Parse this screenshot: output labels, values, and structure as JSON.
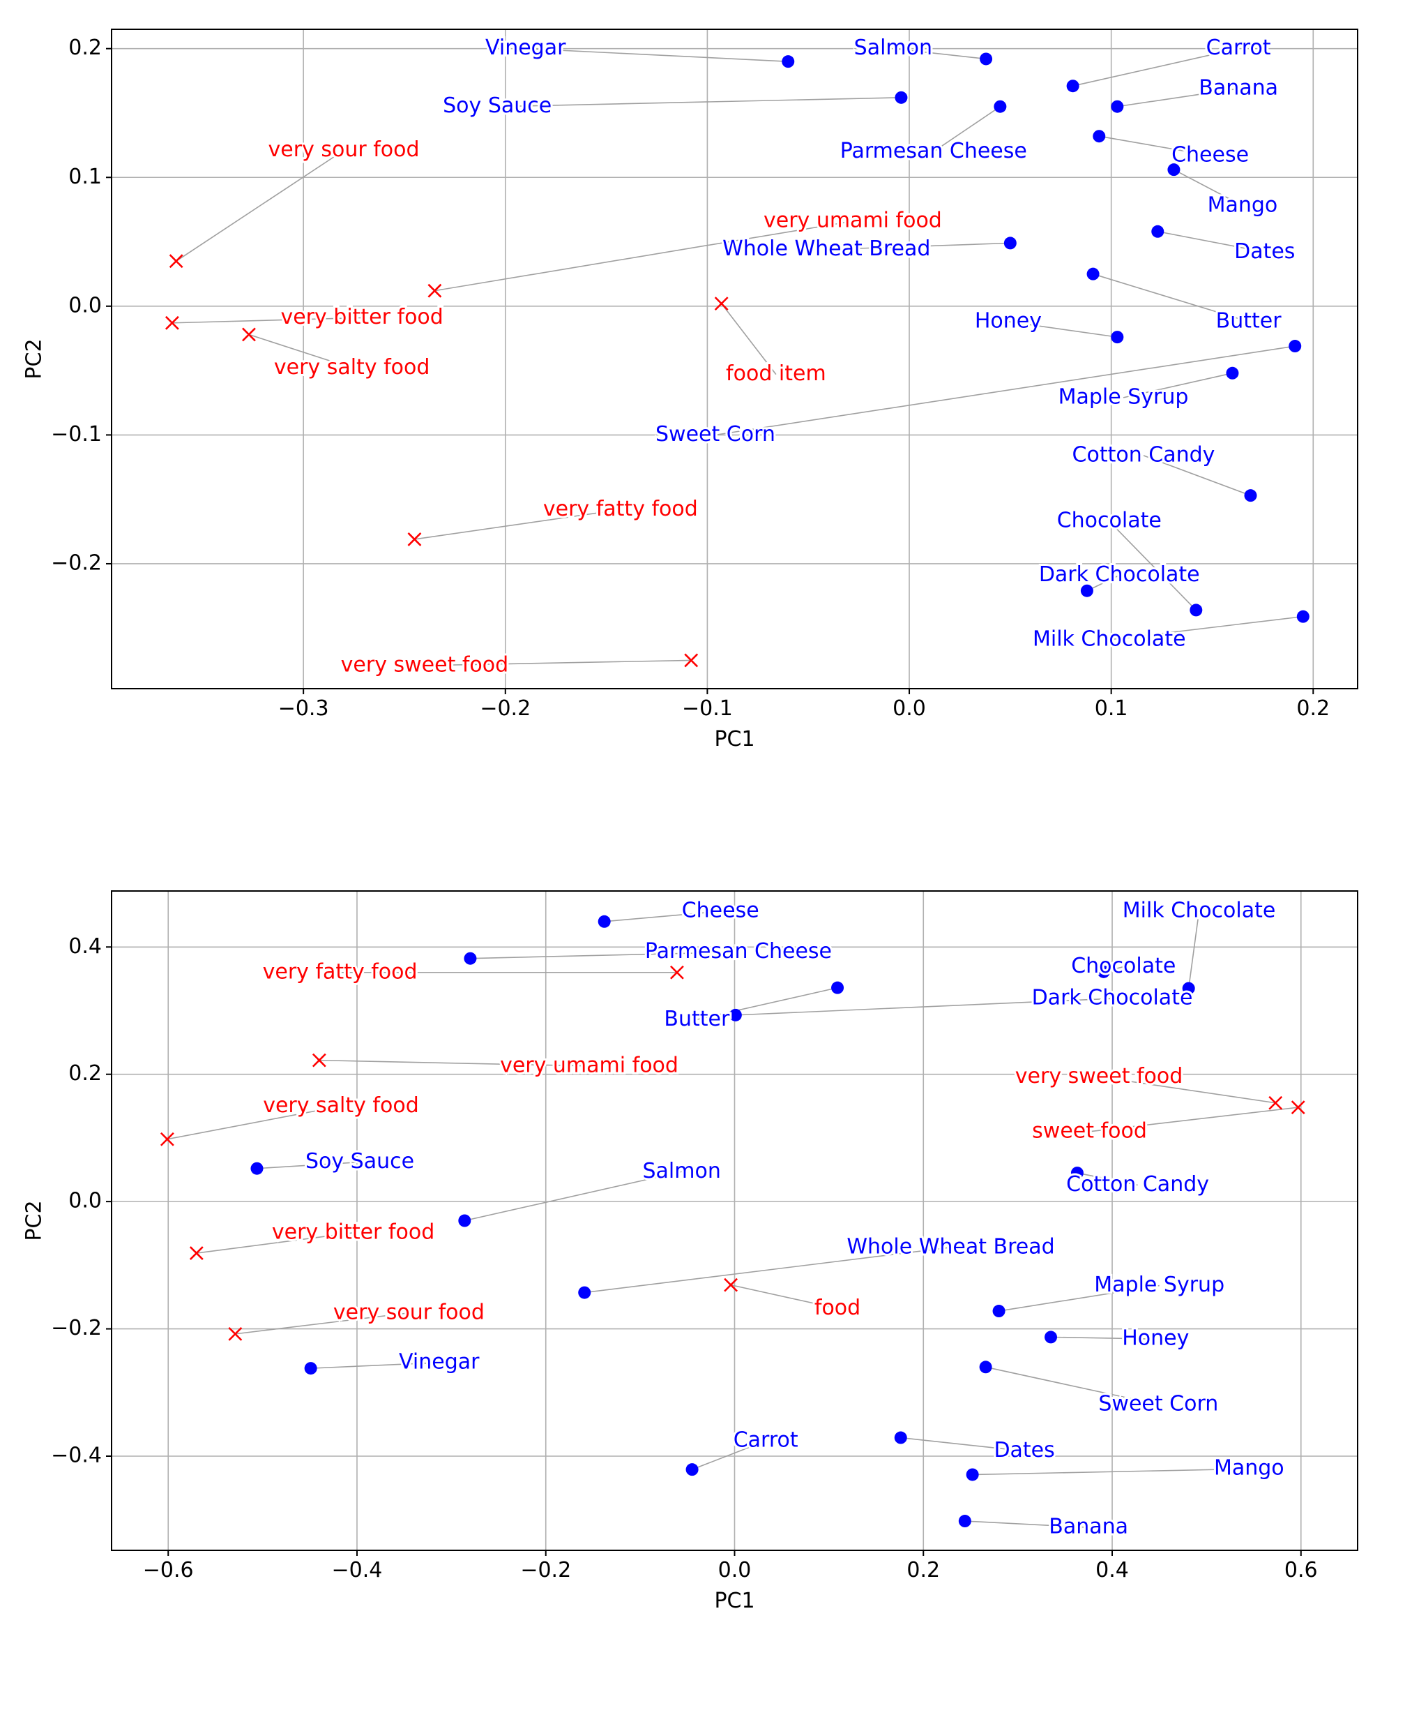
{
  "colors": {
    "word": "#0000ff",
    "concept": "#ff0000",
    "grid": "#b0b0b0",
    "leader": "#a0a0a0"
  },
  "chart_data": [
    {
      "type": "scatter",
      "xlabel": "PC1",
      "ylabel": "PC2",
      "xlim": [
        -0.395,
        0.222
      ],
      "ylim": [
        -0.297,
        0.215
      ],
      "xticks": [
        -0.3,
        -0.2,
        -0.1,
        0.0,
        0.1,
        0.2
      ],
      "xtick_labels": [
        "−0.3",
        "−0.2",
        "−0.1",
        "0.0",
        "0.1",
        "0.2"
      ],
      "yticks": [
        -0.2,
        -0.1,
        0.0,
        0.1,
        0.2
      ],
      "ytick_labels": [
        "−0.2",
        "−0.1",
        "0.0",
        "0.1",
        "0.2"
      ],
      "grid": true,
      "series": [
        {
          "marker": "circle",
          "color": "#0000ff",
          "points": [
            {
              "label": "Vinegar",
              "x": -0.06,
              "y": 0.19,
              "lx": -0.19,
              "ly": 0.2
            },
            {
              "label": "Salmon",
              "x": 0.038,
              "y": 0.192,
              "lx": -0.008,
              "ly": 0.2
            },
            {
              "label": "Carrot",
              "x": 0.081,
              "y": 0.171,
              "lx": 0.163,
              "ly": 0.2
            },
            {
              "label": "Banana",
              "x": 0.103,
              "y": 0.155,
              "lx": 0.163,
              "ly": 0.169
            },
            {
              "label": "Soy Sauce",
              "x": -0.004,
              "y": 0.162,
              "lx": -0.204,
              "ly": 0.155
            },
            {
              "label": "Parmesan Cheese",
              "x": 0.045,
              "y": 0.155,
              "lx": 0.012,
              "ly": 0.12
            },
            {
              "label": "Cheese",
              "x": 0.094,
              "y": 0.132,
              "lx": 0.149,
              "ly": 0.117
            },
            {
              "label": "Mango",
              "x": 0.131,
              "y": 0.106,
              "lx": 0.165,
              "ly": 0.078
            },
            {
              "label": "Whole Wheat Bread",
              "x": 0.05,
              "y": 0.049,
              "lx": -0.041,
              "ly": 0.044
            },
            {
              "label": "Dates",
              "x": 0.123,
              "y": 0.058,
              "lx": 0.176,
              "ly": 0.042
            },
            {
              "label": "Butter",
              "x": 0.091,
              "y": 0.025,
              "lx": 0.168,
              "ly": -0.012
            },
            {
              "label": "Honey",
              "x": 0.103,
              "y": -0.024,
              "lx": 0.049,
              "ly": -0.012
            },
            {
              "label": "Sweet Corn",
              "x": 0.191,
              "y": -0.031,
              "lx": -0.096,
              "ly": -0.1
            },
            {
              "label": "Maple Syrup",
              "x": 0.16,
              "y": -0.052,
              "lx": 0.106,
              "ly": -0.071
            },
            {
              "label": "Cotton Candy",
              "x": 0.169,
              "y": -0.147,
              "lx": 0.116,
              "ly": -0.116
            },
            {
              "label": "Chocolate",
              "x": 0.142,
              "y": -0.236,
              "lx": 0.099,
              "ly": -0.167
            },
            {
              "label": "Dark Chocolate",
              "x": 0.088,
              "y": -0.221,
              "lx": 0.104,
              "ly": -0.209
            },
            {
              "label": "Milk Chocolate",
              "x": 0.195,
              "y": -0.241,
              "lx": 0.099,
              "ly": -0.259
            }
          ]
        },
        {
          "marker": "x",
          "color": "#ff0000",
          "points": [
            {
              "label": "very sour food",
              "x": -0.363,
              "y": 0.035,
              "lx": -0.28,
              "ly": 0.121
            },
            {
              "label": "very umami food",
              "x": -0.235,
              "y": 0.012,
              "lx": -0.028,
              "ly": 0.066
            },
            {
              "label": "very bitter food",
              "x": -0.365,
              "y": -0.013,
              "lx": -0.271,
              "ly": -0.009
            },
            {
              "label": "very salty food",
              "x": -0.327,
              "y": -0.022,
              "lx": -0.276,
              "ly": -0.048
            },
            {
              "label": "food item",
              "x": -0.093,
              "y": 0.002,
              "lx": -0.066,
              "ly": -0.053
            },
            {
              "label": "very fatty food",
              "x": -0.245,
              "y": -0.181,
              "lx": -0.143,
              "ly": -0.158
            },
            {
              "label": "very sweet food",
              "x": -0.108,
              "y": -0.275,
              "lx": -0.24,
              "ly": -0.279
            }
          ]
        }
      ]
    },
    {
      "type": "scatter",
      "xlabel": "PC1",
      "ylabel": "PC2",
      "xlim": [
        -0.66,
        0.66
      ],
      "ylim": [
        -0.548,
        0.488
      ],
      "xticks": [
        -0.6,
        -0.4,
        -0.2,
        0.0,
        0.2,
        0.4,
        0.6
      ],
      "xtick_labels": [
        "−0.6",
        "−0.4",
        "−0.2",
        "0.0",
        "0.2",
        "0.4",
        "0.6"
      ],
      "yticks": [
        -0.4,
        -0.2,
        0.0,
        0.2,
        0.4
      ],
      "ytick_labels": [
        "−0.4",
        "−0.2",
        "0.0",
        "0.2",
        "0.4"
      ],
      "grid": true,
      "series": [
        {
          "marker": "circle",
          "color": "#0000ff",
          "points": [
            {
              "label": "Cheese",
              "x": -0.138,
              "y": 0.44,
              "lx": -0.015,
              "ly": 0.456
            },
            {
              "label": "Parmesan Cheese",
              "x": -0.28,
              "y": 0.382,
              "lx": 0.004,
              "ly": 0.392
            },
            {
              "label": "Milk Chocolate",
              "x": 0.481,
              "y": 0.335,
              "lx": 0.492,
              "ly": 0.456
            },
            {
              "label": "Chocolate",
              "x": 0.391,
              "y": 0.361,
              "lx": 0.412,
              "ly": 0.369
            },
            {
              "label": "Butter",
              "x": 0.109,
              "y": 0.336,
              "lx": -0.04,
              "ly": 0.286
            },
            {
              "label": "Dark Chocolate",
              "x": 0.001,
              "y": 0.293,
              "lx": 0.4,
              "ly": 0.319
            },
            {
              "label": "Soy Sauce",
              "x": -0.506,
              "y": 0.052,
              "lx": -0.397,
              "ly": 0.062
            },
            {
              "label": "Cotton Candy",
              "x": 0.363,
              "y": 0.045,
              "lx": 0.427,
              "ly": 0.026
            },
            {
              "label": "Salmon",
              "x": -0.286,
              "y": -0.03,
              "lx": -0.056,
              "ly": 0.047
            },
            {
              "label": "Whole Wheat Bread",
              "x": -0.159,
              "y": -0.143,
              "lx": 0.229,
              "ly": -0.072
            },
            {
              "label": "Maple Syrup",
              "x": 0.28,
              "y": -0.172,
              "lx": 0.45,
              "ly": -0.132
            },
            {
              "label": "Honey",
              "x": 0.335,
              "y": -0.213,
              "lx": 0.446,
              "ly": -0.216
            },
            {
              "label": "Vinegar",
              "x": -0.449,
              "y": -0.262,
              "lx": -0.313,
              "ly": -0.253
            },
            {
              "label": "Sweet Corn",
              "x": 0.266,
              "y": -0.26,
              "lx": 0.449,
              "ly": -0.319
            },
            {
              "label": "Carrot",
              "x": -0.045,
              "y": -0.421,
              "lx": 0.033,
              "ly": -0.376
            },
            {
              "label": "Dates",
              "x": 0.176,
              "y": -0.371,
              "lx": 0.307,
              "ly": -0.392
            },
            {
              "label": "Mango",
              "x": 0.252,
              "y": -0.429,
              "lx": 0.545,
              "ly": -0.42
            },
            {
              "label": "Banana",
              "x": 0.244,
              "y": -0.502,
              "lx": 0.375,
              "ly": -0.512
            }
          ]
        },
        {
          "marker": "x",
          "color": "#ff0000",
          "points": [
            {
              "label": "very fatty food",
              "x": -0.061,
              "y": 0.36,
              "lx": -0.418,
              "ly": 0.36
            },
            {
              "label": "very umami food",
              "x": -0.44,
              "y": 0.222,
              "lx": -0.154,
              "ly": 0.213
            },
            {
              "label": "very sweet food",
              "x": 0.573,
              "y": 0.155,
              "lx": 0.386,
              "ly": 0.196
            },
            {
              "label": "sweet food",
              "x": 0.597,
              "y": 0.148,
              "lx": 0.376,
              "ly": 0.11
            },
            {
              "label": "very salty food",
              "x": -0.601,
              "y": 0.098,
              "lx": -0.417,
              "ly": 0.15
            },
            {
              "label": "very bitter food",
              "x": -0.57,
              "y": -0.081,
              "lx": -0.404,
              "ly": -0.049
            },
            {
              "label": "food",
              "x": -0.004,
              "y": -0.131,
              "lx": 0.109,
              "ly": -0.168
            },
            {
              "label": "very sour food",
              "x": -0.529,
              "y": -0.208,
              "lx": -0.345,
              "ly": -0.175
            }
          ]
        }
      ]
    }
  ]
}
